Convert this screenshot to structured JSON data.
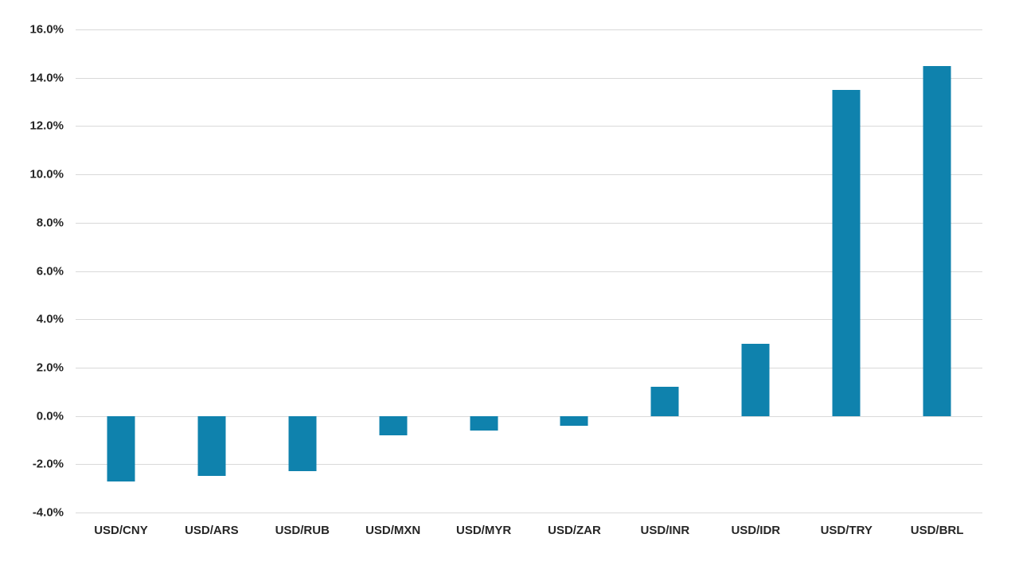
{
  "chart_data": {
    "type": "bar",
    "categories": [
      "USD/CNY",
      "USD/ARS",
      "USD/RUB",
      "USD/MXN",
      "USD/MYR",
      "USD/ZAR",
      "USD/INR",
      "USD/IDR",
      "USD/TRY",
      "USD/BRL"
    ],
    "values": [
      -2.7,
      -2.5,
      -2.3,
      -0.8,
      -0.6,
      -0.4,
      1.2,
      3.0,
      13.5,
      14.5
    ],
    "title": "",
    "xlabel": "",
    "ylabel": "",
    "ylim": [
      -4,
      16
    ],
    "ytick_step": 2,
    "ytick_labels": [
      "16.0%",
      "14.0%",
      "12.0%",
      "10.0%",
      "8.0%",
      "6.0%",
      "4.0%",
      "2.0%",
      "0.0%",
      "-2.0%",
      "-4.0%"
    ],
    "grid": true,
    "legend": false,
    "colors": {
      "bar": "#0F82AD",
      "gridline": "#D9D9D9",
      "text": "#262626",
      "background": "#FFFFFF"
    }
  }
}
